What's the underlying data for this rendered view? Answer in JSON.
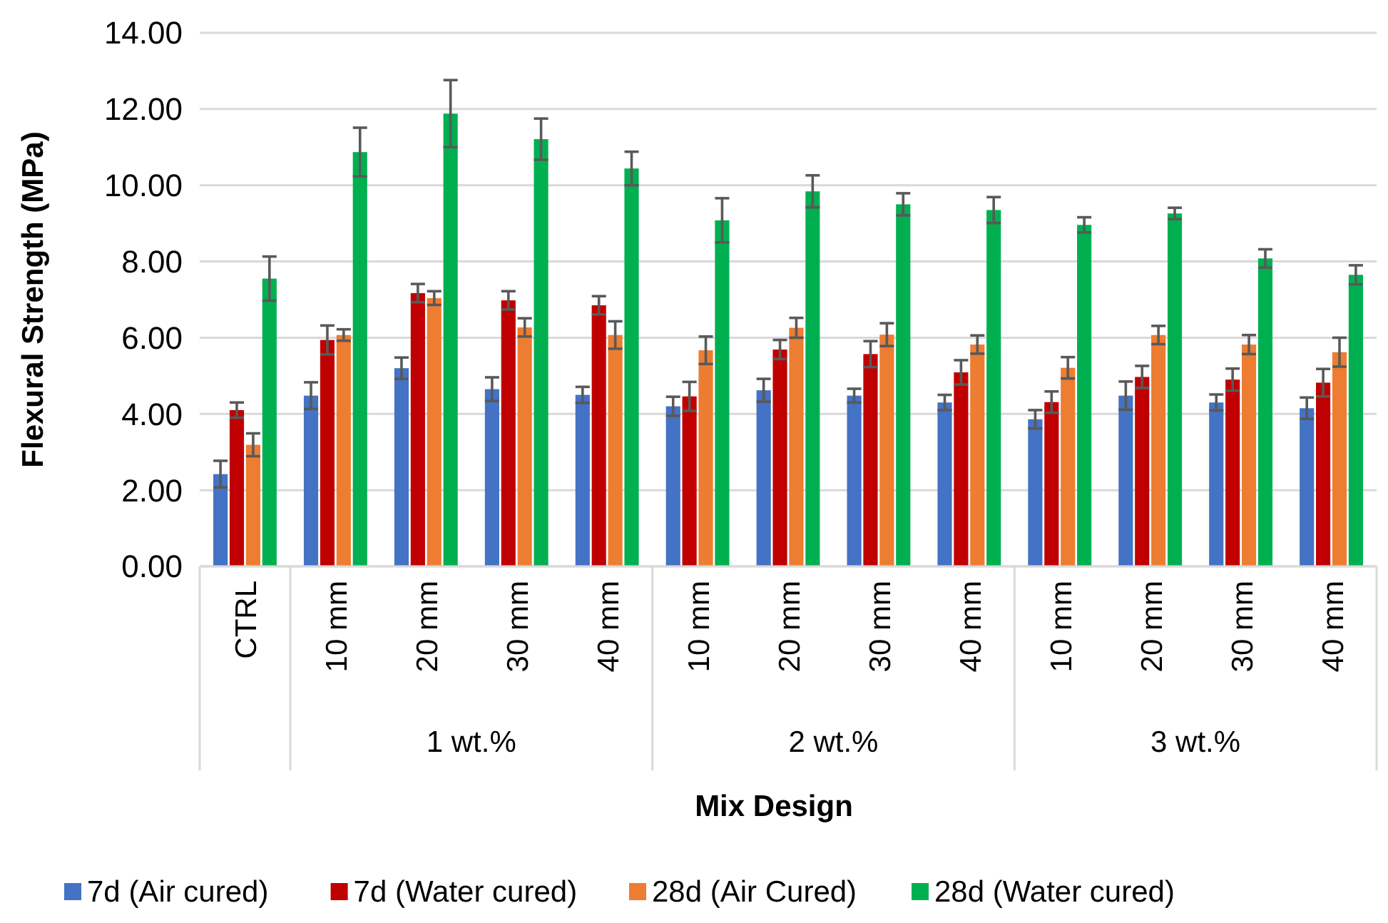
{
  "chart_data": {
    "type": "bar",
    "xlabel": "Mix Design",
    "ylabel": "Flexural Strength (MPa)",
    "categories": [
      "CTRL",
      "10 mm",
      "20 mm",
      "30 mm",
      "40 mm",
      "10 mm",
      "20 mm",
      "30 mm",
      "40 mm",
      "10 mm",
      "20 mm",
      "30 mm",
      "40 mm"
    ],
    "annotations": [
      "1 wt.%",
      "2 wt.%",
      "3 wt.%"
    ],
    "series": [
      {
        "name": "7d (Air cured)",
        "color": "#4472c4",
        "values": [
          2.42,
          4.48,
          5.2,
          4.65,
          4.5,
          4.2,
          4.62,
          4.48,
          4.3,
          3.86,
          4.48,
          4.3,
          4.15
        ],
        "errors": [
          0.35,
          0.35,
          0.28,
          0.31,
          0.21,
          0.25,
          0.3,
          0.18,
          0.2,
          0.24,
          0.37,
          0.21,
          0.28
        ]
      },
      {
        "name": "7d (Water cured)",
        "color": "#c00000",
        "values": [
          4.1,
          5.94,
          7.17,
          6.98,
          6.85,
          4.46,
          5.69,
          5.57,
          5.09,
          4.31,
          4.97,
          4.9,
          4.82
        ],
        "errors": [
          0.2,
          0.38,
          0.24,
          0.24,
          0.24,
          0.38,
          0.25,
          0.34,
          0.32,
          0.28,
          0.29,
          0.29,
          0.36
        ]
      },
      {
        "name": "28d (Air Cured)",
        "color": "#ed7d31",
        "values": [
          3.19,
          6.07,
          7.04,
          6.27,
          6.07,
          5.67,
          6.26,
          6.08,
          5.82,
          5.21,
          6.07,
          5.82,
          5.62
        ],
        "errors": [
          0.3,
          0.15,
          0.18,
          0.24,
          0.36,
          0.36,
          0.26,
          0.3,
          0.24,
          0.28,
          0.24,
          0.25,
          0.38
        ]
      },
      {
        "name": "28d (Water cured)",
        "color": "#00b050",
        "values": [
          7.55,
          10.87,
          11.88,
          11.21,
          10.44,
          9.08,
          9.84,
          9.5,
          9.35,
          8.96,
          9.26,
          8.08,
          7.65
        ],
        "errors": [
          0.58,
          0.64,
          0.88,
          0.54,
          0.44,
          0.58,
          0.42,
          0.29,
          0.34,
          0.2,
          0.15,
          0.24,
          0.25
        ]
      }
    ],
    "ylim": [
      0,
      14
    ],
    "yticks": [
      {
        "value": 0,
        "label": "0.00"
      },
      {
        "value": 2,
        "label": "2.00"
      },
      {
        "value": 4,
        "label": "4.00"
      },
      {
        "value": 6,
        "label": "6.00"
      },
      {
        "value": 8,
        "label": "8.00"
      },
      {
        "value": 10,
        "label": "10.00"
      },
      {
        "value": 12,
        "label": "12.00"
      },
      {
        "value": 14,
        "label": "14.00"
      }
    ],
    "grid": "y",
    "legend": "bottom"
  }
}
